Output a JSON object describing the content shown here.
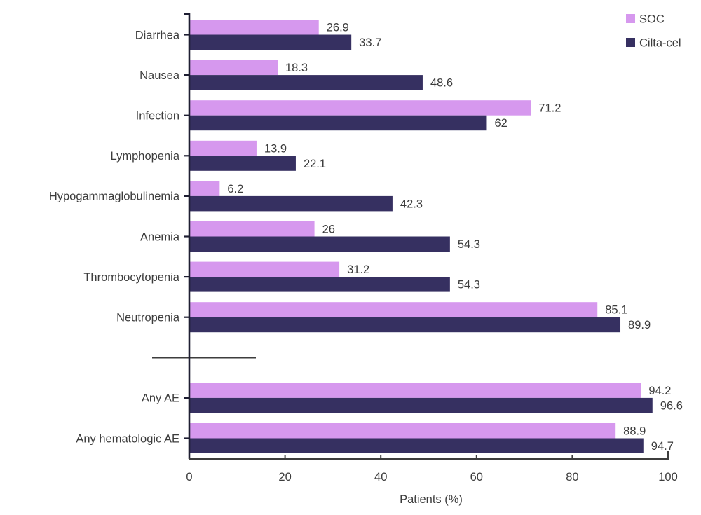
{
  "chart_data": {
    "type": "bar",
    "orientation": "horizontal",
    "title": "",
    "xlabel": "Patients (%)",
    "xlim": [
      0,
      100
    ],
    "xticks": [
      0,
      20,
      40,
      60,
      80,
      100
    ],
    "grid": false,
    "legend_position": "top-right",
    "value_labels": true,
    "categories": [
      "Diarrhea",
      "Nausea",
      "Infection",
      "Lymphopenia",
      "Hypogammaglobulinemia",
      "Anemia",
      "Thrombocytopenia",
      "Neutropenia",
      "Any AE",
      "Any hematologic AE"
    ],
    "axis_break_after_category": "Neutropenia",
    "series": [
      {
        "name": "SOC",
        "color": "#d698ee",
        "values": [
          26.9,
          18.3,
          71.2,
          13.9,
          6.2,
          26,
          31.2,
          85.1,
          94.2,
          88.9
        ]
      },
      {
        "name": "Cilta-cel",
        "color": "#363061",
        "values": [
          33.7,
          48.6,
          62,
          22.1,
          42.3,
          54.3,
          54.3,
          89.9,
          96.6,
          94.7
        ]
      }
    ]
  },
  "colors": {
    "text": "#3c3c3c",
    "y_axis": "#1e1e32",
    "x_axis": "#3d3d3d",
    "break_line": "#3d3d3d",
    "background": "#ffffff"
  }
}
